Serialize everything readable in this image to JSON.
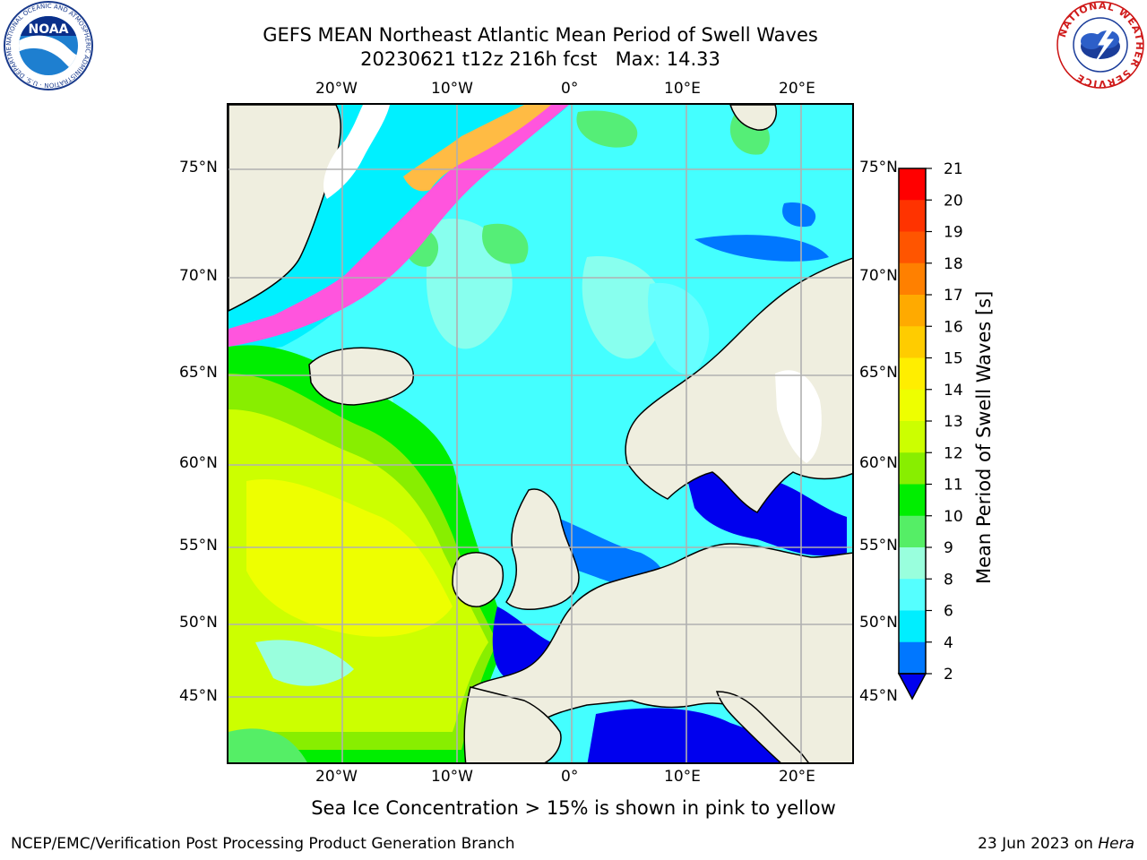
{
  "header": {
    "title_line1": "GEFS MEAN Northeast Atlantic Mean Period of Swell Waves",
    "title_line2": "20230621 t12z 216h fcst   Max: 14.33"
  },
  "logos": {
    "left": {
      "text": "NOAA",
      "ring_text": "NATIONAL OCEANIC AND ATMOSPHERIC ADMINISTRATION · U.S. DEPARTMENT OF COMMERCE"
    },
    "right": {
      "ring_text": "NATIONAL WEATHER SERVICE"
    }
  },
  "map": {
    "lon_labels": [
      "20°W",
      "10°W",
      "0°",
      "10°E",
      "20°E"
    ],
    "lon_values": [
      -20,
      -10,
      0,
      10,
      20
    ],
    "lat_labels": [
      "75°N",
      "70°N",
      "65°N",
      "60°N",
      "55°N",
      "50°N",
      "45°N"
    ],
    "lat_values": [
      75,
      70,
      65,
      60,
      55,
      50,
      45
    ],
    "land_color": "#efeedf",
    "grid": true
  },
  "colorbar": {
    "label": "Mean Period of Swell Waves [s]",
    "ticks": [
      "21",
      "20",
      "19",
      "18",
      "17",
      "16",
      "15",
      "14",
      "13",
      "12",
      "11",
      "10",
      "9",
      "8",
      "6",
      "4",
      "2"
    ],
    "colors_top_to_bottom": [
      "#ff0000",
      "#ff3300",
      "#ff5500",
      "#ff8000",
      "#ffaa00",
      "#ffcc00",
      "#ffee00",
      "#eeff00",
      "#ccff00",
      "#88ee00",
      "#00ee00",
      "#55ee66",
      "#99ffdd",
      "#55ffff",
      "#00eeff",
      "#0077ff"
    ],
    "extend_color": "#0000ee"
  },
  "caption": "Sea Ice Concentration > 15% is shown in pink to yellow",
  "footer": {
    "left": "NCEP/EMC/Verification Post Processing Product Generation Branch",
    "right_date": "23 Jun 2023 on ",
    "right_host": "Hera"
  }
}
